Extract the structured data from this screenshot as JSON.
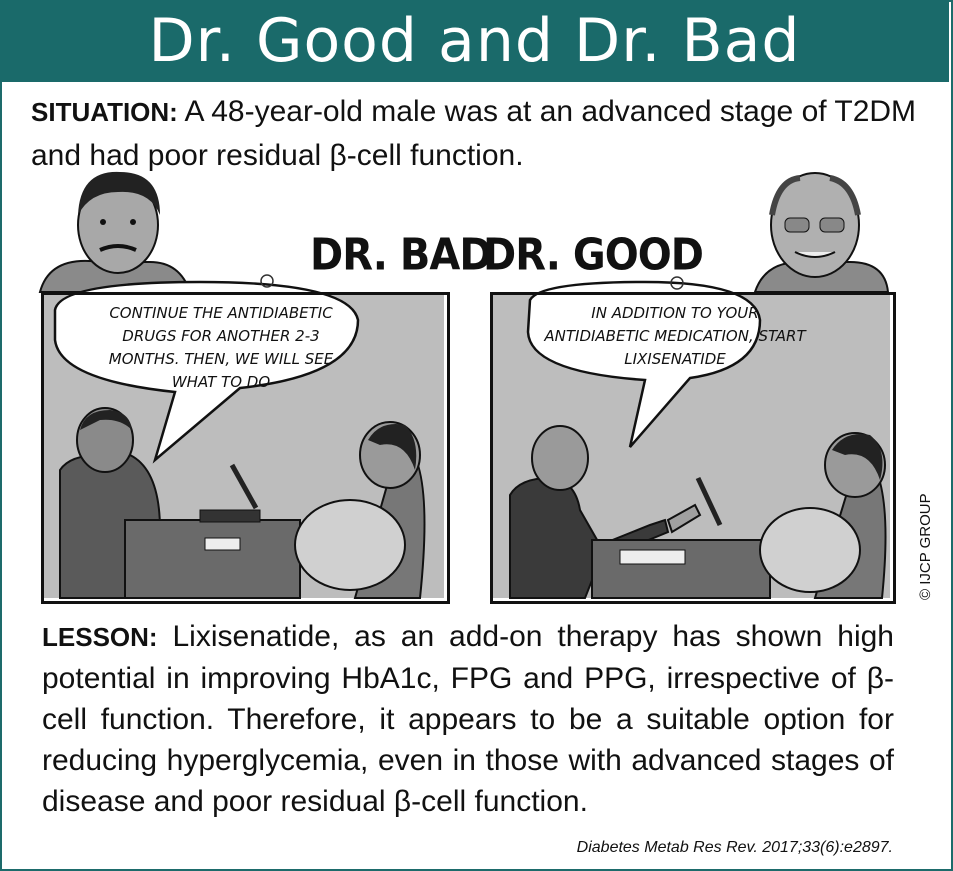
{
  "title": "Dr. Good and Dr. Bad",
  "situation": {
    "label": "SITUATION:",
    "text": "A 48-year-old male was at an advanced stage of T2DM and had poor residual β-cell function."
  },
  "panels": {
    "bad": {
      "label": "DR. BAD",
      "speech": "CONTINUE THE ANTIDIABETIC DRUGS FOR ANOTHER 2-3 MONTHS. THEN, WE WILL SEE WHAT TO DO"
    },
    "good": {
      "label": "DR. GOOD",
      "speech": "IN ADDITION TO YOUR ANTIDIABETIC MEDICATION, START LIXISENATIDE"
    }
  },
  "lesson": {
    "label": "LESSON:",
    "text": "Lixisenatide, as an add-on therapy has shown high potential in improving HbA1c, FPG and PPG, irrespective of β-cell function. Therefore, it appears to be a suitable option for reducing hyperglycemia, even in those with advanced stages of disease and poor residual β-cell function."
  },
  "citation": "Diabetes Metab Res Rev. 2017;33(6):e2897.",
  "copyright": "© IJCP GROUP",
  "colors": {
    "header": "#1a6a6a",
    "panel": "#b9b9b9"
  }
}
